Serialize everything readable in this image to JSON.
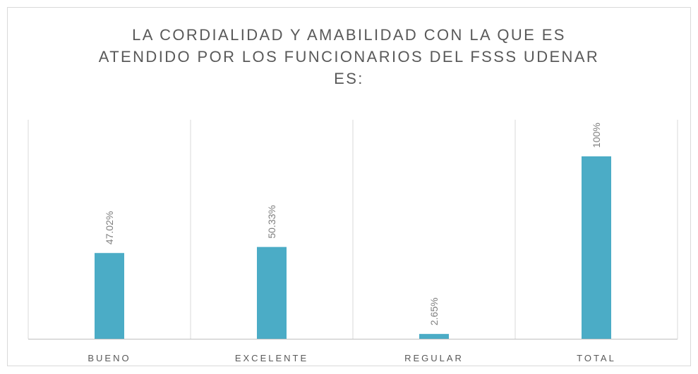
{
  "chart_data": {
    "type": "bar",
    "title": "LA CORDIALIDAD Y AMABILIDAD CON LA QUE ES ATENDIDO POR LOS FUNCIONARIOS DEL FSSS UDENAR ES:",
    "categories": [
      "BUENO",
      "EXCELENTE",
      "REGULAR",
      "TOTAL"
    ],
    "values": [
      47.02,
      50.33,
      2.65,
      100
    ],
    "value_labels": [
      "47.02%",
      "50.33%",
      "2.65%",
      "100%"
    ],
    "color": "#4bacc6"
  }
}
